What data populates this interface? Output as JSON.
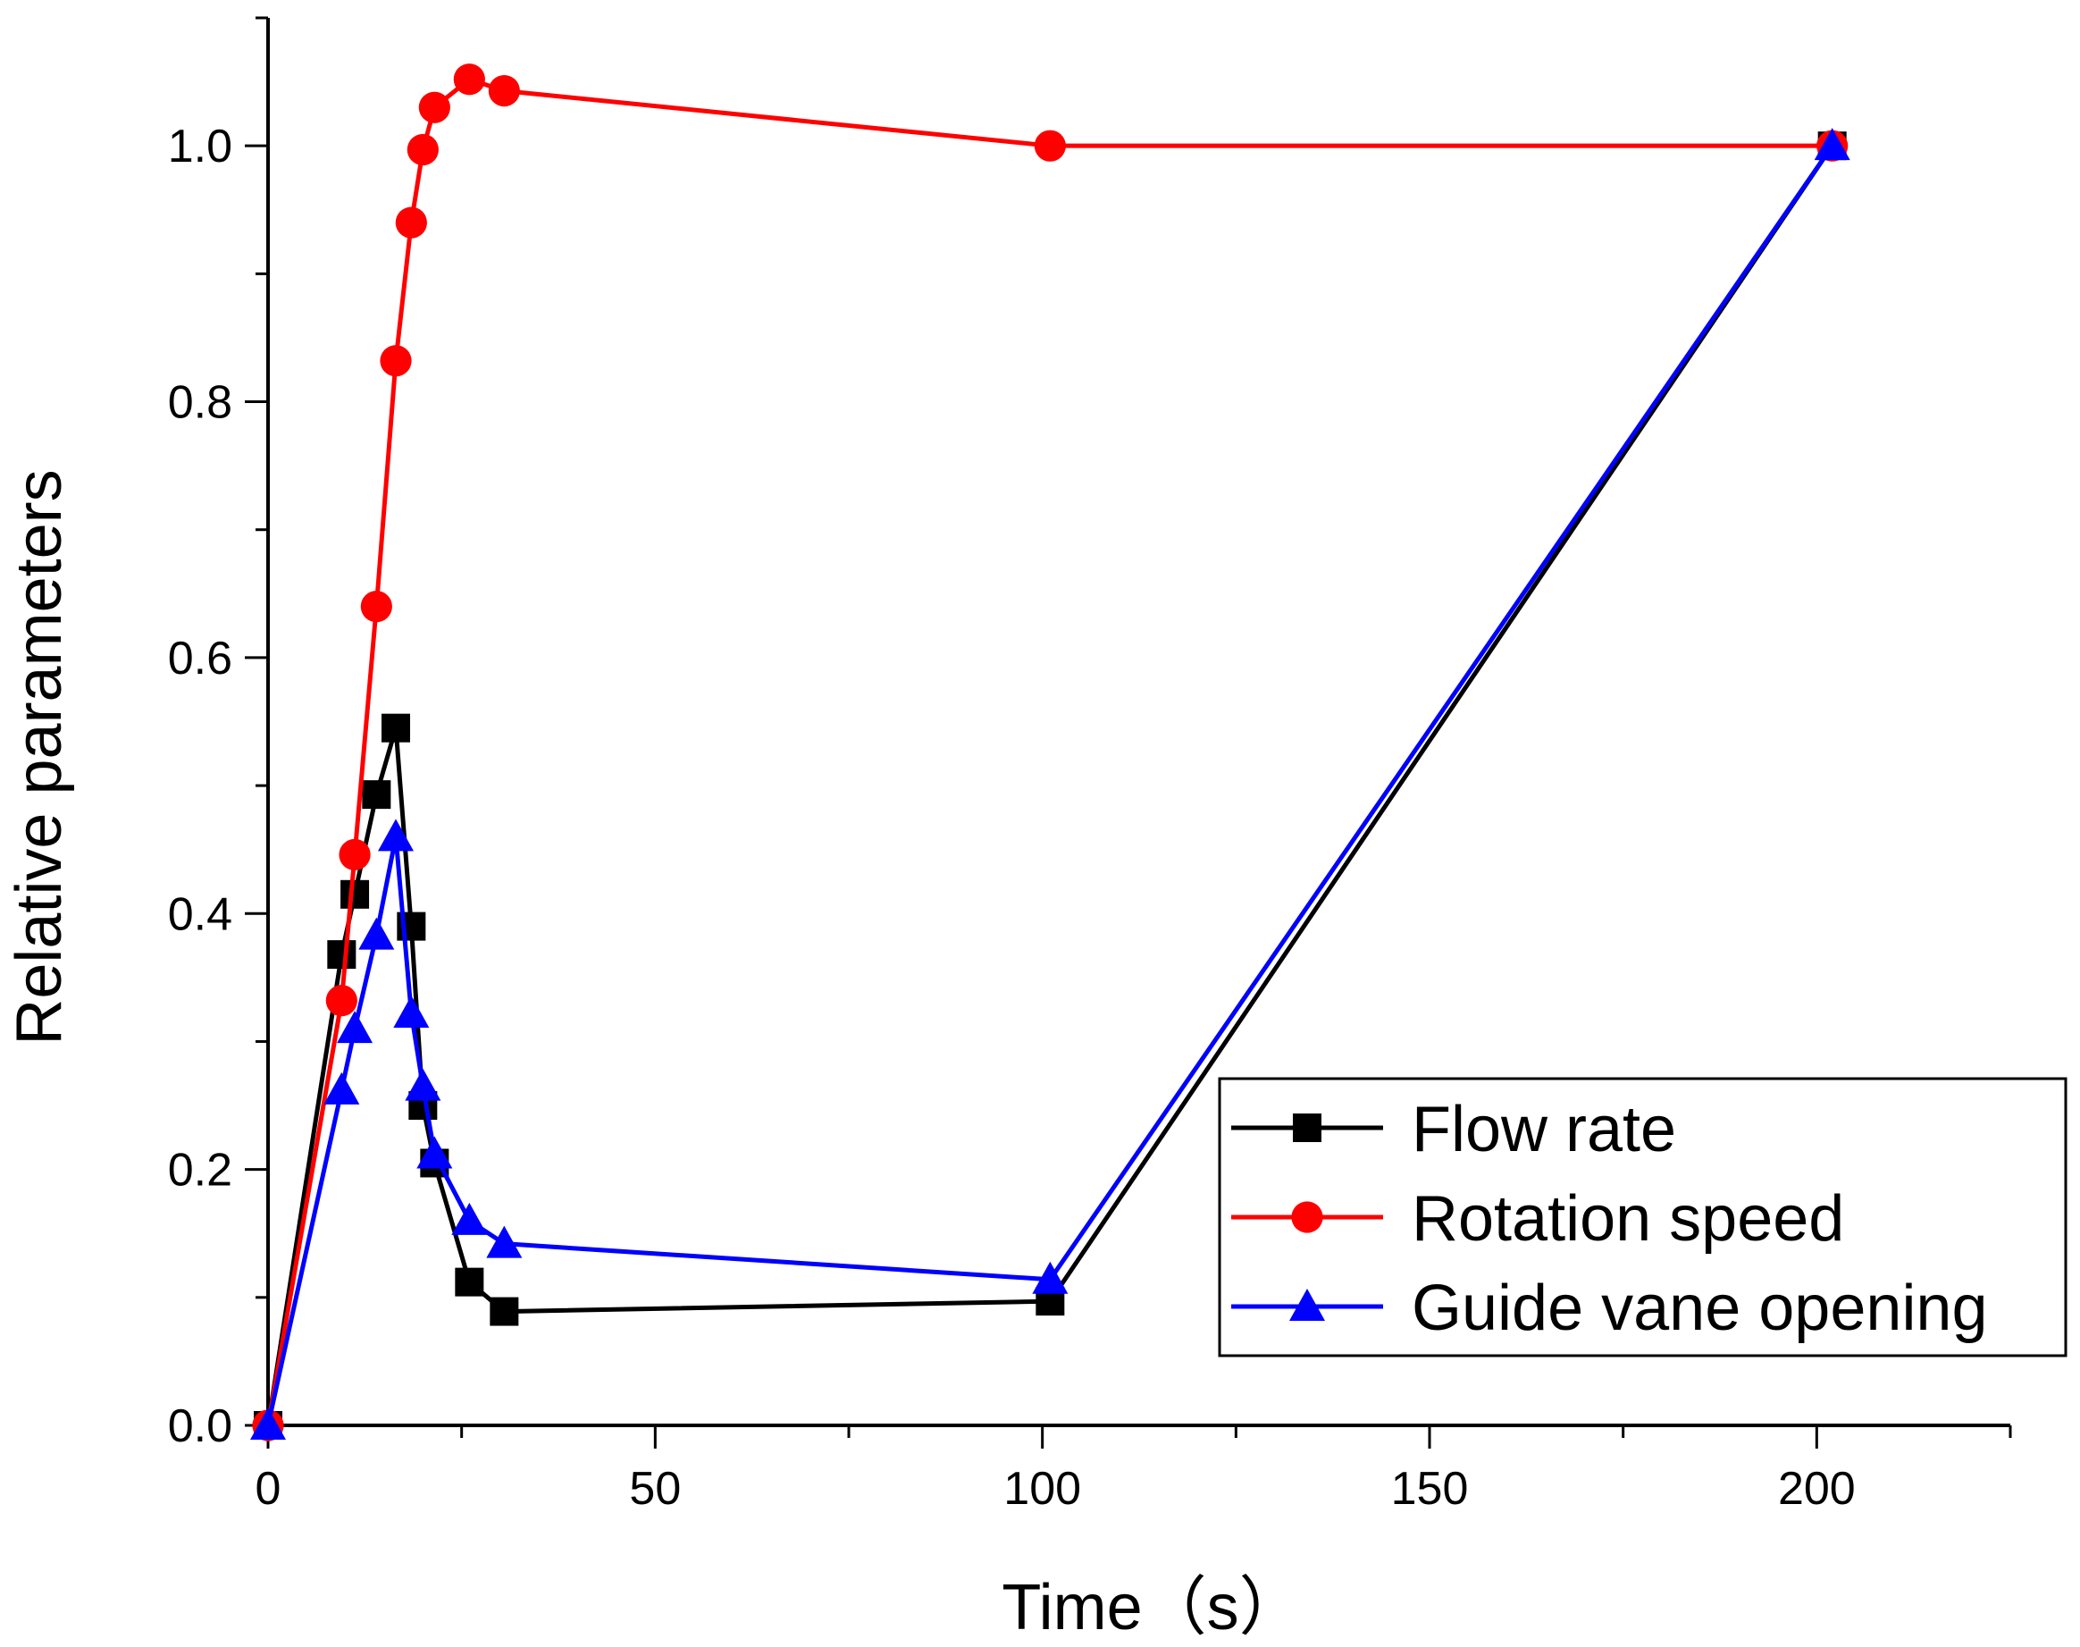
{
  "chart_data": {
    "type": "line",
    "xlabel": "Time（s）",
    "ylabel": "Relative parameters",
    "xlim": [
      0,
      225
    ],
    "ylim": [
      0,
      1.1
    ],
    "x_ticks": [
      0,
      50,
      100,
      150,
      200
    ],
    "x_tick_labels": [
      "0",
      "50",
      "100",
      "150",
      "200"
    ],
    "y_ticks": [
      0,
      0.2,
      0.4,
      0.6,
      0.8,
      1.0
    ],
    "y_tick_labels": [
      "0.0",
      "0.2",
      "0.4",
      "0.6",
      "0.8",
      "1.0"
    ],
    "grid": false,
    "legend_position": "bottom-right",
    "series": [
      {
        "name": "Flow rate",
        "color": "#000000",
        "marker": "square",
        "x": [
          0,
          9.5,
          11.2,
          14,
          16.5,
          18.5,
          20,
          21.5,
          26,
          30.5,
          101,
          202
        ],
        "y": [
          0,
          0.368,
          0.415,
          0.493,
          0.545,
          0.39,
          0.25,
          0.205,
          0.112,
          0.089,
          0.097,
          1.0
        ]
      },
      {
        "name": "Rotation speed",
        "color": "#ff0000",
        "marker": "circle",
        "x": [
          0,
          9.5,
          11.2,
          14,
          16.5,
          18.5,
          20,
          21.5,
          26,
          30.5,
          101,
          202
        ],
        "y": [
          0,
          0.332,
          0.446,
          0.64,
          0.832,
          0.94,
          0.997,
          1.03,
          1.052,
          1.043,
          1.0,
          1.0
        ]
      },
      {
        "name": "Guide vane opening",
        "color": "#0000ff",
        "marker": "triangle",
        "x": [
          0,
          9.5,
          11.2,
          14,
          16.5,
          18.5,
          20,
          21.5,
          26,
          30.5,
          101,
          202
        ],
        "y": [
          0,
          0.262,
          0.31,
          0.383,
          0.46,
          0.322,
          0.265,
          0.212,
          0.16,
          0.142,
          0.114,
          1.0
        ]
      }
    ]
  }
}
